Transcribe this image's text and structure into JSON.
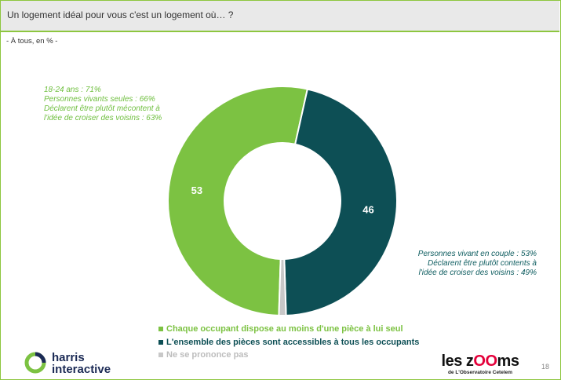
{
  "header": {
    "title": "Un logement idéal pour vous c'est un logement où… ?",
    "subtitle": "- À tous, en % -"
  },
  "notes": {
    "left": [
      "18-24 ans : 71%",
      "Personnes vivants seules : 66%",
      "Déclarent être plutôt mécontent à",
      "l'idée de croiser des voisins : 63%"
    ],
    "right": [
      "Personnes vivant en couple : 53%",
      "Déclarent être plutôt contents à",
      "l'idée de croiser des voisins : 49%"
    ]
  },
  "chart_data": {
    "type": "pie",
    "donut": true,
    "slices": [
      {
        "label": "Chaque occupant dispose au moins d'une pièce à lui seul",
        "value": 53,
        "color": "#7cc242",
        "show_label": true
      },
      {
        "label": "L'ensemble des pièces sont accessibles à tous les occupants",
        "value": 46,
        "color": "#0d4f55",
        "show_label": true
      },
      {
        "label": "Ne se prononce pas",
        "value": 1,
        "color": "#c8c8c8",
        "show_label": false
      }
    ],
    "legend_position": "bottom-center"
  },
  "legend": {
    "items": [
      {
        "label": "Chaque occupant dispose au moins d'une pièce à lui seul",
        "color": "#7cc242"
      },
      {
        "label": "L'ensemble des pièces sont accessibles à tous les occupants",
        "color": "#0d4f55"
      },
      {
        "label": "Ne se prononce pas",
        "color": "#c8c8c8"
      }
    ]
  },
  "footer": {
    "logo_left": {
      "line1": "harris",
      "line2": "interactive"
    },
    "logo_right": {
      "prefix": "les z",
      "oo": "OO",
      "suffix": "ms",
      "sub": "de L'Observatoire Cetelem"
    },
    "page_number": "18"
  }
}
